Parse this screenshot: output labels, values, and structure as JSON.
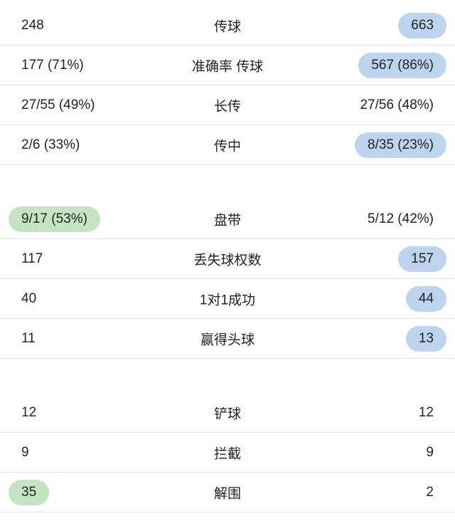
{
  "colors": {
    "highlight_blue": "#bcd4ee",
    "highlight_green": "#c4e5c2"
  },
  "sections": [
    {
      "rows": [
        {
          "label": "传球",
          "left": "248",
          "right": "663",
          "highlight": "right",
          "highlight_color": "blue"
        },
        {
          "label": "准确率 传球",
          "left": "177 (71%)",
          "right": "567 (86%)",
          "highlight": "right",
          "highlight_color": "blue"
        },
        {
          "label": "长传",
          "left": "27/55 (49%)",
          "right": "27/56 (48%)",
          "highlight": "none"
        },
        {
          "label": "传中",
          "left": "2/6 (33%)",
          "right": "8/35 (23%)",
          "highlight": "right",
          "highlight_color": "blue"
        }
      ]
    },
    {
      "rows": [
        {
          "label": "盘带",
          "left": "9/17 (53%)",
          "right": "5/12 (42%)",
          "highlight": "left",
          "highlight_color": "green"
        },
        {
          "label": "丢失球权数",
          "left": "117",
          "right": "157",
          "highlight": "right",
          "highlight_color": "blue"
        },
        {
          "label": "1对1成功",
          "left": "40",
          "right": "44",
          "highlight": "right",
          "highlight_color": "blue"
        },
        {
          "label": "赢得头球",
          "left": "11",
          "right": "13",
          "highlight": "right",
          "highlight_color": "blue"
        }
      ]
    },
    {
      "rows": [
        {
          "label": "铲球",
          "left": "12",
          "right": "12",
          "highlight": "none"
        },
        {
          "label": "拦截",
          "left": "9",
          "right": "9",
          "highlight": "none"
        },
        {
          "label": "解围",
          "left": "35",
          "right": "2",
          "highlight": "left",
          "highlight_color": "green"
        }
      ]
    }
  ]
}
